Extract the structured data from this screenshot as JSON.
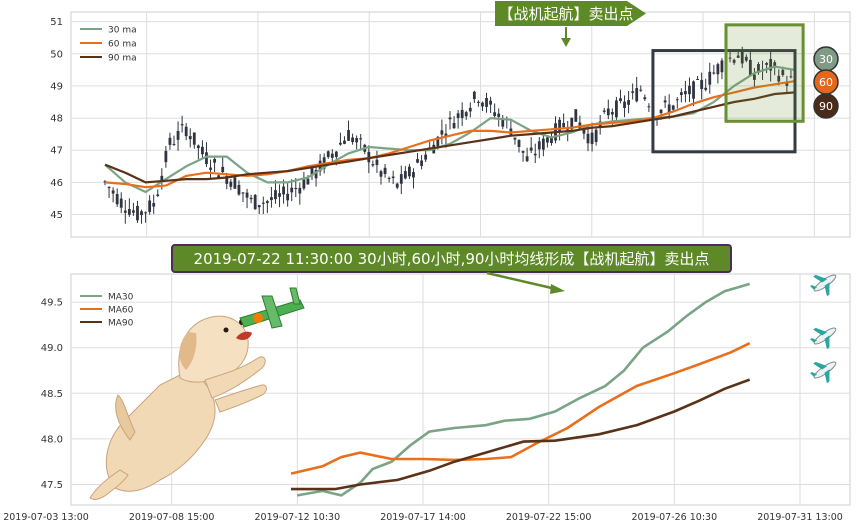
{
  "top_banner": "【战机起航】卖出点",
  "bottom_banner": "2019-07-22 11:30:00 30小时,60小时,90小时均线形成【战机起航】卖出点",
  "badges": [
    "30",
    "60",
    "90"
  ],
  "colors": {
    "ma30": "#7aa486",
    "ma60": "#e86f1c",
    "ma90": "#5a3218",
    "candle": "#2f3440",
    "banner_fill": "#5d8a26",
    "banner_border": "#4a2d5c",
    "highlight_box": "#6a8f33",
    "signal_box": "#333a44",
    "grid": "#dddddd",
    "badge30": "#7f9a86",
    "badge60": "#e4671e",
    "badge90": "#4a2a18"
  },
  "chart_data": [
    {
      "type": "candlestick",
      "legend": [
        "30 ma",
        "60 ma",
        "90 ma"
      ],
      "legend_position": "top-left",
      "grid": true,
      "ylim": [
        44.3,
        51.3
      ],
      "yticks": [
        45,
        46,
        47,
        48,
        49,
        50,
        51
      ],
      "ma_series": [
        {
          "name": "30 ma",
          "color": "#7aa486",
          "points": [
            [
              0,
              46.55
            ],
            [
              5,
              46.0
            ],
            [
              10,
              45.7
            ],
            [
              15,
              46.1
            ],
            [
              20,
              46.5
            ],
            [
              25,
              46.8
            ],
            [
              30,
              46.8
            ],
            [
              35,
              46.3
            ],
            [
              40,
              46.0
            ],
            [
              45,
              46.0
            ],
            [
              50,
              46.15
            ],
            [
              55,
              46.55
            ],
            [
              60,
              46.9
            ],
            [
              65,
              47.1
            ],
            [
              70,
              47.05
            ],
            [
              75,
              47.0
            ],
            [
              80,
              47.0
            ],
            [
              85,
              47.2
            ],
            [
              90,
              47.55
            ],
            [
              95,
              48.0
            ],
            [
              100,
              47.95
            ],
            [
              105,
              47.6
            ],
            [
              110,
              47.4
            ],
            [
              115,
              47.55
            ],
            [
              120,
              47.8
            ],
            [
              125,
              47.9
            ],
            [
              130,
              47.95
            ],
            [
              135,
              48.0
            ],
            [
              140,
              48.05
            ],
            [
              145,
              48.15
            ],
            [
              150,
              48.5
            ],
            [
              155,
              49.0
            ],
            [
              160,
              49.4
            ],
            [
              165,
              49.6
            ],
            [
              170,
              49.5
            ]
          ]
        },
        {
          "name": "60 ma",
          "color": "#e86f1c",
          "points": [
            [
              0,
              46.0
            ],
            [
              5,
              45.95
            ],
            [
              10,
              45.85
            ],
            [
              15,
              45.9
            ],
            [
              20,
              46.2
            ],
            [
              25,
              46.3
            ],
            [
              30,
              46.25
            ],
            [
              35,
              46.2
            ],
            [
              40,
              46.25
            ],
            [
              45,
              46.35
            ],
            [
              50,
              46.5
            ],
            [
              55,
              46.6
            ],
            [
              60,
              46.7
            ],
            [
              65,
              46.75
            ],
            [
              70,
              46.9
            ],
            [
              75,
              47.1
            ],
            [
              80,
              47.3
            ],
            [
              85,
              47.45
            ],
            [
              90,
              47.6
            ],
            [
              95,
              47.6
            ],
            [
              100,
              47.55
            ],
            [
              105,
              47.6
            ],
            [
              110,
              47.65
            ],
            [
              115,
              47.7
            ],
            [
              120,
              47.8
            ],
            [
              125,
              47.85
            ],
            [
              130,
              47.9
            ],
            [
              135,
              48.0
            ],
            [
              140,
              48.2
            ],
            [
              145,
              48.45
            ],
            [
              150,
              48.65
            ],
            [
              155,
              48.8
            ],
            [
              160,
              48.95
            ],
            [
              165,
              49.05
            ],
            [
              170,
              49.15
            ]
          ]
        },
        {
          "name": "90 ma",
          "color": "#5a3218",
          "points": [
            [
              0,
              46.55
            ],
            [
              5,
              46.3
            ],
            [
              10,
              46.0
            ],
            [
              15,
              46.05
            ],
            [
              20,
              46.1
            ],
            [
              25,
              46.1
            ],
            [
              30,
              46.15
            ],
            [
              35,
              46.25
            ],
            [
              40,
              46.3
            ],
            [
              45,
              46.35
            ],
            [
              50,
              46.45
            ],
            [
              55,
              46.55
            ],
            [
              60,
              46.65
            ],
            [
              65,
              46.75
            ],
            [
              70,
              46.85
            ],
            [
              75,
              46.95
            ],
            [
              80,
              47.05
            ],
            [
              85,
              47.15
            ],
            [
              90,
              47.25
            ],
            [
              95,
              47.35
            ],
            [
              100,
              47.45
            ],
            [
              105,
              47.5
            ],
            [
              110,
              47.55
            ],
            [
              115,
              47.6
            ],
            [
              120,
              47.7
            ],
            [
              125,
              47.75
            ],
            [
              130,
              47.85
            ],
            [
              135,
              47.95
            ],
            [
              140,
              48.05
            ],
            [
              145,
              48.2
            ],
            [
              150,
              48.35
            ],
            [
              155,
              48.5
            ],
            [
              160,
              48.6
            ],
            [
              165,
              48.75
            ],
            [
              170,
              48.8
            ]
          ]
        }
      ],
      "candle_path": [
        [
          0,
          46.0
        ],
        [
          4,
          45.4
        ],
        [
          8,
          45.0
        ],
        [
          12,
          45.3
        ],
        [
          16,
          47.2
        ],
        [
          20,
          47.7
        ],
        [
          24,
          46.9
        ],
        [
          28,
          46.4
        ],
        [
          32,
          46.0
        ],
        [
          36,
          45.4
        ],
        [
          40,
          45.4
        ],
        [
          44,
          45.6
        ],
        [
          48,
          45.9
        ],
        [
          52,
          46.3
        ],
        [
          56,
          46.9
        ],
        [
          60,
          47.5
        ],
        [
          64,
          47.0
        ],
        [
          68,
          46.3
        ],
        [
          72,
          45.9
        ],
        [
          76,
          46.4
        ],
        [
          80,
          47.0
        ],
        [
          84,
          47.7
        ],
        [
          88,
          48.2
        ],
        [
          92,
          48.7
        ],
        [
          96,
          48.2
        ],
        [
          100,
          47.7
        ],
        [
          104,
          46.7
        ],
        [
          108,
          47.2
        ],
        [
          112,
          47.7
        ],
        [
          116,
          48.0
        ],
        [
          120,
          47.3
        ],
        [
          124,
          48.2
        ],
        [
          128,
          48.4
        ],
        [
          132,
          48.9
        ],
        [
          136,
          48.2
        ],
        [
          140,
          48.4
        ],
        [
          144,
          48.8
        ],
        [
          148,
          49.1
        ],
        [
          152,
          49.7
        ],
        [
          156,
          50.0
        ],
        [
          160,
          49.4
        ],
        [
          164,
          49.6
        ],
        [
          168,
          49.2
        ],
        [
          170,
          49.1
        ]
      ],
      "signal_box": {
        "from": 135,
        "to": 170,
        "y": [
          46.95,
          50.1
        ]
      },
      "highlight_box": {
        "from": 153,
        "to": 172,
        "y": [
          47.9,
          50.9
        ]
      }
    },
    {
      "type": "line",
      "legend": [
        "MA30",
        "MA60",
        "MA90"
      ],
      "legend_position": "top-left",
      "grid": true,
      "ylim": [
        47.45,
        49.72
      ],
      "yticks": [
        47.5,
        48.0,
        48.5,
        49.0,
        49.5
      ],
      "x_ticks": [
        "2019-07-03 13:00",
        "2019-07-08 15:00",
        "2019-07-12 10:30",
        "2019-07-17 14:00",
        "2019-07-22 15:00",
        "2019-07-26 10:30",
        "2019-07-31 13:00"
      ],
      "series": [
        {
          "name": "MA30",
          "color": "#7aa486",
          "points": [
            [
              2.0,
              47.38
            ],
            [
              2.2,
              47.43
            ],
            [
              2.35,
              47.38
            ],
            [
              2.5,
              47.52
            ],
            [
              2.6,
              47.67
            ],
            [
              2.75,
              47.75
            ],
            [
              2.9,
              47.93
            ],
            [
              3.05,
              48.08
            ],
            [
              3.25,
              48.12
            ],
            [
              3.5,
              48.15
            ],
            [
              3.65,
              48.2
            ],
            [
              3.85,
              48.22
            ],
            [
              4.05,
              48.3
            ],
            [
              4.25,
              48.45
            ],
            [
              4.45,
              48.58
            ],
            [
              4.6,
              48.75
            ],
            [
              4.75,
              49.0
            ],
            [
              4.95,
              49.18
            ],
            [
              5.1,
              49.35
            ],
            [
              5.25,
              49.5
            ],
            [
              5.4,
              49.62
            ],
            [
              5.55,
              49.68
            ],
            [
              5.6,
              49.7
            ]
          ]
        },
        {
          "name": "MA60",
          "color": "#e86f1c",
          "points": [
            [
              1.95,
              47.62
            ],
            [
              2.2,
              47.7
            ],
            [
              2.35,
              47.8
            ],
            [
              2.5,
              47.85
            ],
            [
              2.75,
              47.78
            ],
            [
              3.0,
              47.78
            ],
            [
              3.25,
              47.77
            ],
            [
              3.5,
              47.78
            ],
            [
              3.7,
              47.8
            ],
            [
              3.9,
              47.95
            ],
            [
              4.15,
              48.12
            ],
            [
              4.4,
              48.35
            ],
            [
              4.7,
              48.58
            ],
            [
              5.0,
              48.72
            ],
            [
              5.2,
              48.82
            ],
            [
              5.45,
              48.95
            ],
            [
              5.6,
              49.05
            ]
          ]
        },
        {
          "name": "MA90",
          "color": "#5a3218",
          "points": [
            [
              1.95,
              47.45
            ],
            [
              2.3,
              47.45
            ],
            [
              2.5,
              47.5
            ],
            [
              2.8,
              47.55
            ],
            [
              3.05,
              47.65
            ],
            [
              3.25,
              47.75
            ],
            [
              3.5,
              47.85
            ],
            [
              3.8,
              47.97
            ],
            [
              4.05,
              47.98
            ],
            [
              4.4,
              48.05
            ],
            [
              4.7,
              48.15
            ],
            [
              5.0,
              48.3
            ],
            [
              5.2,
              48.42
            ],
            [
              5.4,
              48.55
            ],
            [
              5.6,
              48.65
            ]
          ]
        }
      ]
    }
  ]
}
